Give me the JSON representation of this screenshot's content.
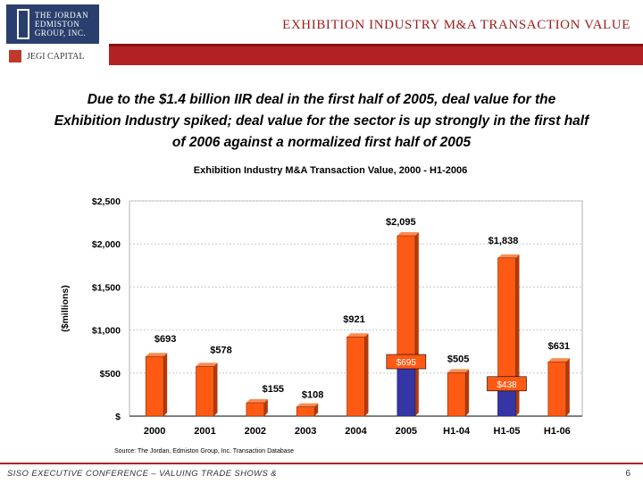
{
  "header": {
    "logo_lines": [
      "THE JORDAN",
      "EDMISTON",
      "GROUP, INC."
    ],
    "capital_label": "JEGI CAPITAL",
    "title": "EXHIBITION INDUSTRY M&A TRANSACTION VALUE"
  },
  "headline": "Due to the $1.4 billion IIR deal in the first half of 2005, deal value for the Exhibition Industry spiked; deal value for the sector is up strongly in the first half of 2006 against a normalized first half of 2005",
  "chart_data": {
    "type": "bar",
    "title": "Exhibition Industry M&A Transaction Value, 2000 - H1-2006",
    "ylabel": "($millions)",
    "ylim": [
      0,
      2500
    ],
    "yticks": [
      0,
      500,
      1000,
      1500,
      2000,
      2500
    ],
    "ytick_labels": [
      "$",
      "$500",
      "$1,000",
      "$1,500",
      "$2,000",
      "$2,500"
    ],
    "categories": [
      "2000",
      "2001",
      "2002",
      "2003",
      "2004",
      "2005",
      "H1-04",
      "H1-05",
      "H1-06"
    ],
    "values": [
      693,
      578,
      155,
      108,
      921,
      2095,
      505,
      1838,
      631
    ],
    "labels": [
      "$693",
      "$578",
      "$155",
      "$108",
      "$921",
      "$2,095",
      "$505",
      "$1,838",
      "$631"
    ],
    "overlay": [
      {
        "category": "2005",
        "value": 695,
        "label": "$695"
      },
      {
        "category": "H1-05",
        "value": 438,
        "label": "$438"
      }
    ],
    "colors": {
      "bar": "#ff5a14",
      "overlay": "#3535a5",
      "plot_bg": "#ffffff",
      "grid": "#c8c8c8"
    },
    "grid": true
  },
  "source": "Source: The Jordan, Edmiston Group, Inc. Transaction Database",
  "footer": {
    "text": "SISO EXECUTIVE CONFERENCE – VALUING TRADE SHOWS &",
    "page": "6"
  }
}
